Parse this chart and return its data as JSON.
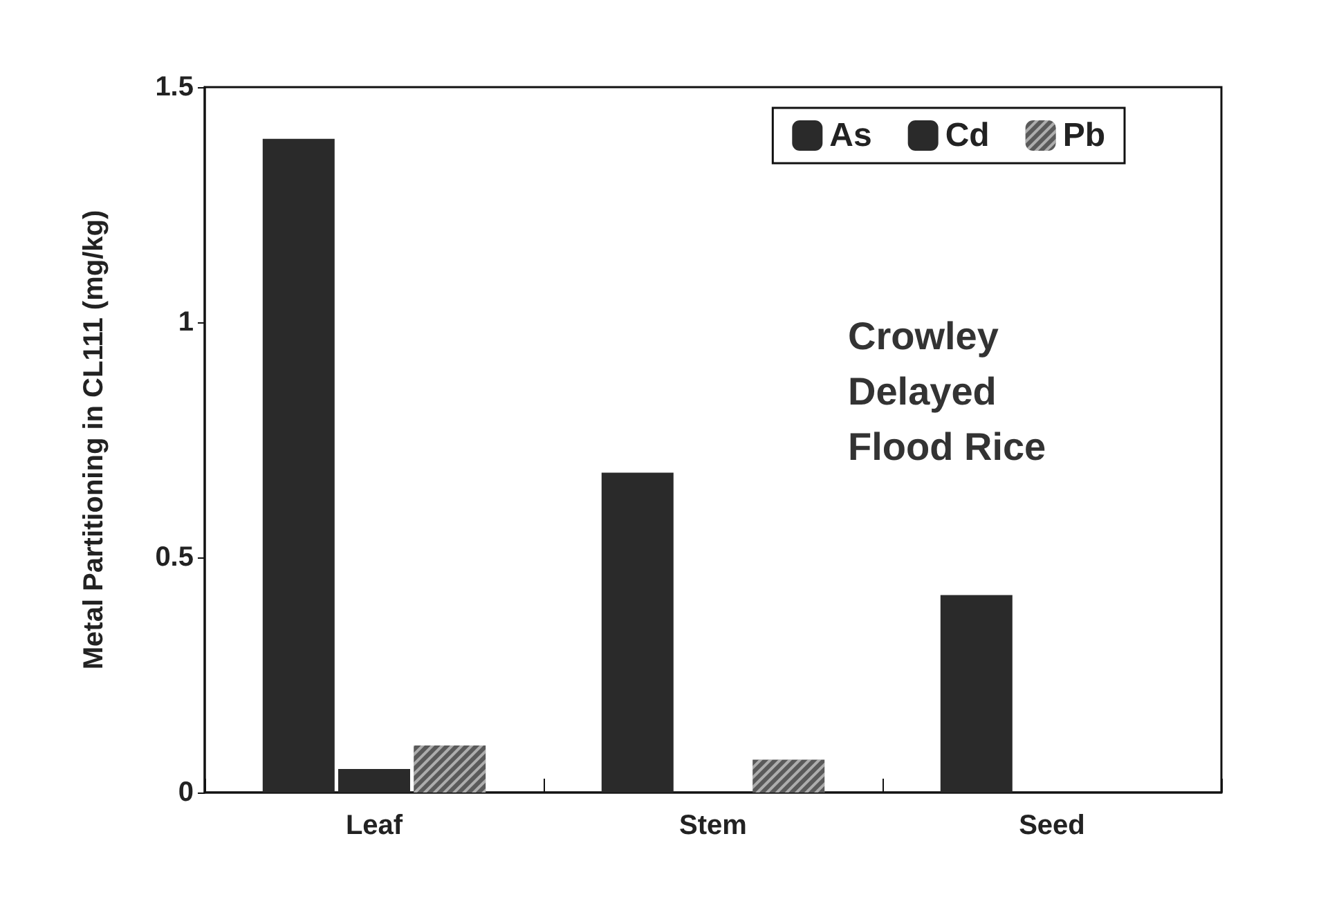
{
  "chart_data": {
    "type": "bar",
    "ylabel": "Metal Partitioning in CL111 (mg/kg)",
    "categories": [
      "Leaf",
      "Stem",
      "Seed"
    ],
    "series": [
      {
        "name": "As",
        "color": "#2a2a2a",
        "values": [
          1.39,
          0.68,
          0.42
        ]
      },
      {
        "name": "Cd",
        "color": "#2a2a2a",
        "values": [
          0.05,
          0,
          0
        ]
      },
      {
        "name": "Pb",
        "color": "#5a5a5a",
        "values": [
          0.1,
          0.07,
          0
        ]
      }
    ],
    "ylim": [
      0,
      1.5
    ],
    "yticks": [
      0,
      0.5,
      1,
      1.5
    ],
    "grid": false,
    "legend": "top right",
    "annotations": [
      "Crowley\nDelayed\nFlood Rice"
    ]
  }
}
